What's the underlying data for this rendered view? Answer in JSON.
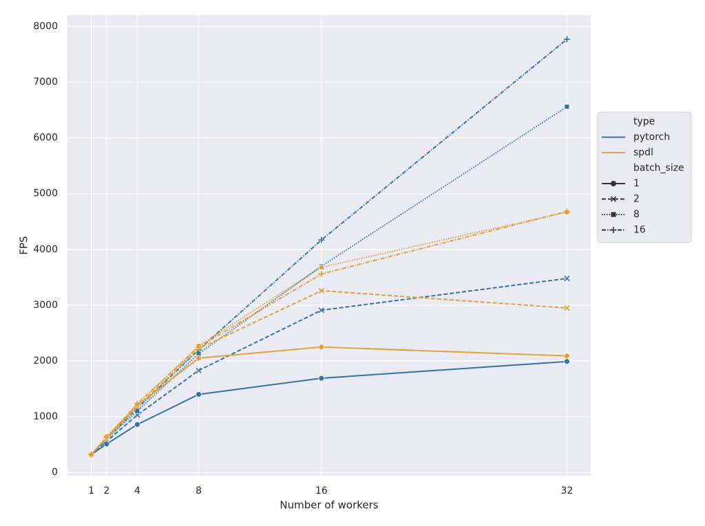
{
  "chart_data": {
    "type": "line",
    "x_label": "Number of workers",
    "y_label": "FPS",
    "x": [
      1,
      2,
      4,
      8,
      16,
      32
    ],
    "xlim": [
      -0.55,
      33.55
    ],
    "xticks": [
      1,
      2,
      4,
      8,
      16,
      32
    ],
    "ylim": [
      -60,
      8153
    ],
    "yticks": [
      0,
      1000,
      2000,
      3000,
      4000,
      5000,
      6000,
      7000,
      8000
    ],
    "grid": true,
    "legend_position": "right",
    "legend": {
      "hue_title": "type",
      "hues": [
        {
          "name": "pytorch",
          "color": "#3274a1"
        },
        {
          "name": "spdl",
          "color": "#e1a03c"
        }
      ],
      "style_title": "batch_size",
      "styles": [
        {
          "name": "1",
          "dash": "none",
          "marker": "circle"
        },
        {
          "name": "2",
          "dash": "6 3",
          "marker": "x"
        },
        {
          "name": "8",
          "dash": "1.5 2",
          "marker": "square"
        },
        {
          "name": "16",
          "dash": "6 2 1.5 2",
          "marker": "plus"
        }
      ]
    },
    "series": [
      {
        "type": "pytorch",
        "batch_size": "1",
        "values": [
          320,
          510,
          860,
          1400,
          1690,
          1990
        ]
      },
      {
        "type": "pytorch",
        "batch_size": "2",
        "values": [
          320,
          560,
          1030,
          1830,
          2910,
          3480
        ]
      },
      {
        "type": "pytorch",
        "batch_size": "8",
        "values": [
          320,
          600,
          1100,
          2130,
          3700,
          6560
        ]
      },
      {
        "type": "pytorch",
        "batch_size": "16",
        "values": [
          320,
          610,
          1150,
          2200,
          4170,
          7770
        ]
      },
      {
        "type": "spdl",
        "batch_size": "1",
        "values": [
          320,
          620,
          1200,
          2050,
          2250,
          2090
        ]
      },
      {
        "type": "spdl",
        "batch_size": "2",
        "values": [
          320,
          610,
          1180,
          2220,
          3260,
          2950
        ]
      },
      {
        "type": "spdl",
        "batch_size": "8",
        "values": [
          320,
          640,
          1220,
          2270,
          3680,
          4670
        ]
      },
      {
        "type": "spdl",
        "batch_size": "16",
        "values": [
          320,
          630,
          1230,
          2250,
          3560,
          4680
        ]
      }
    ]
  }
}
